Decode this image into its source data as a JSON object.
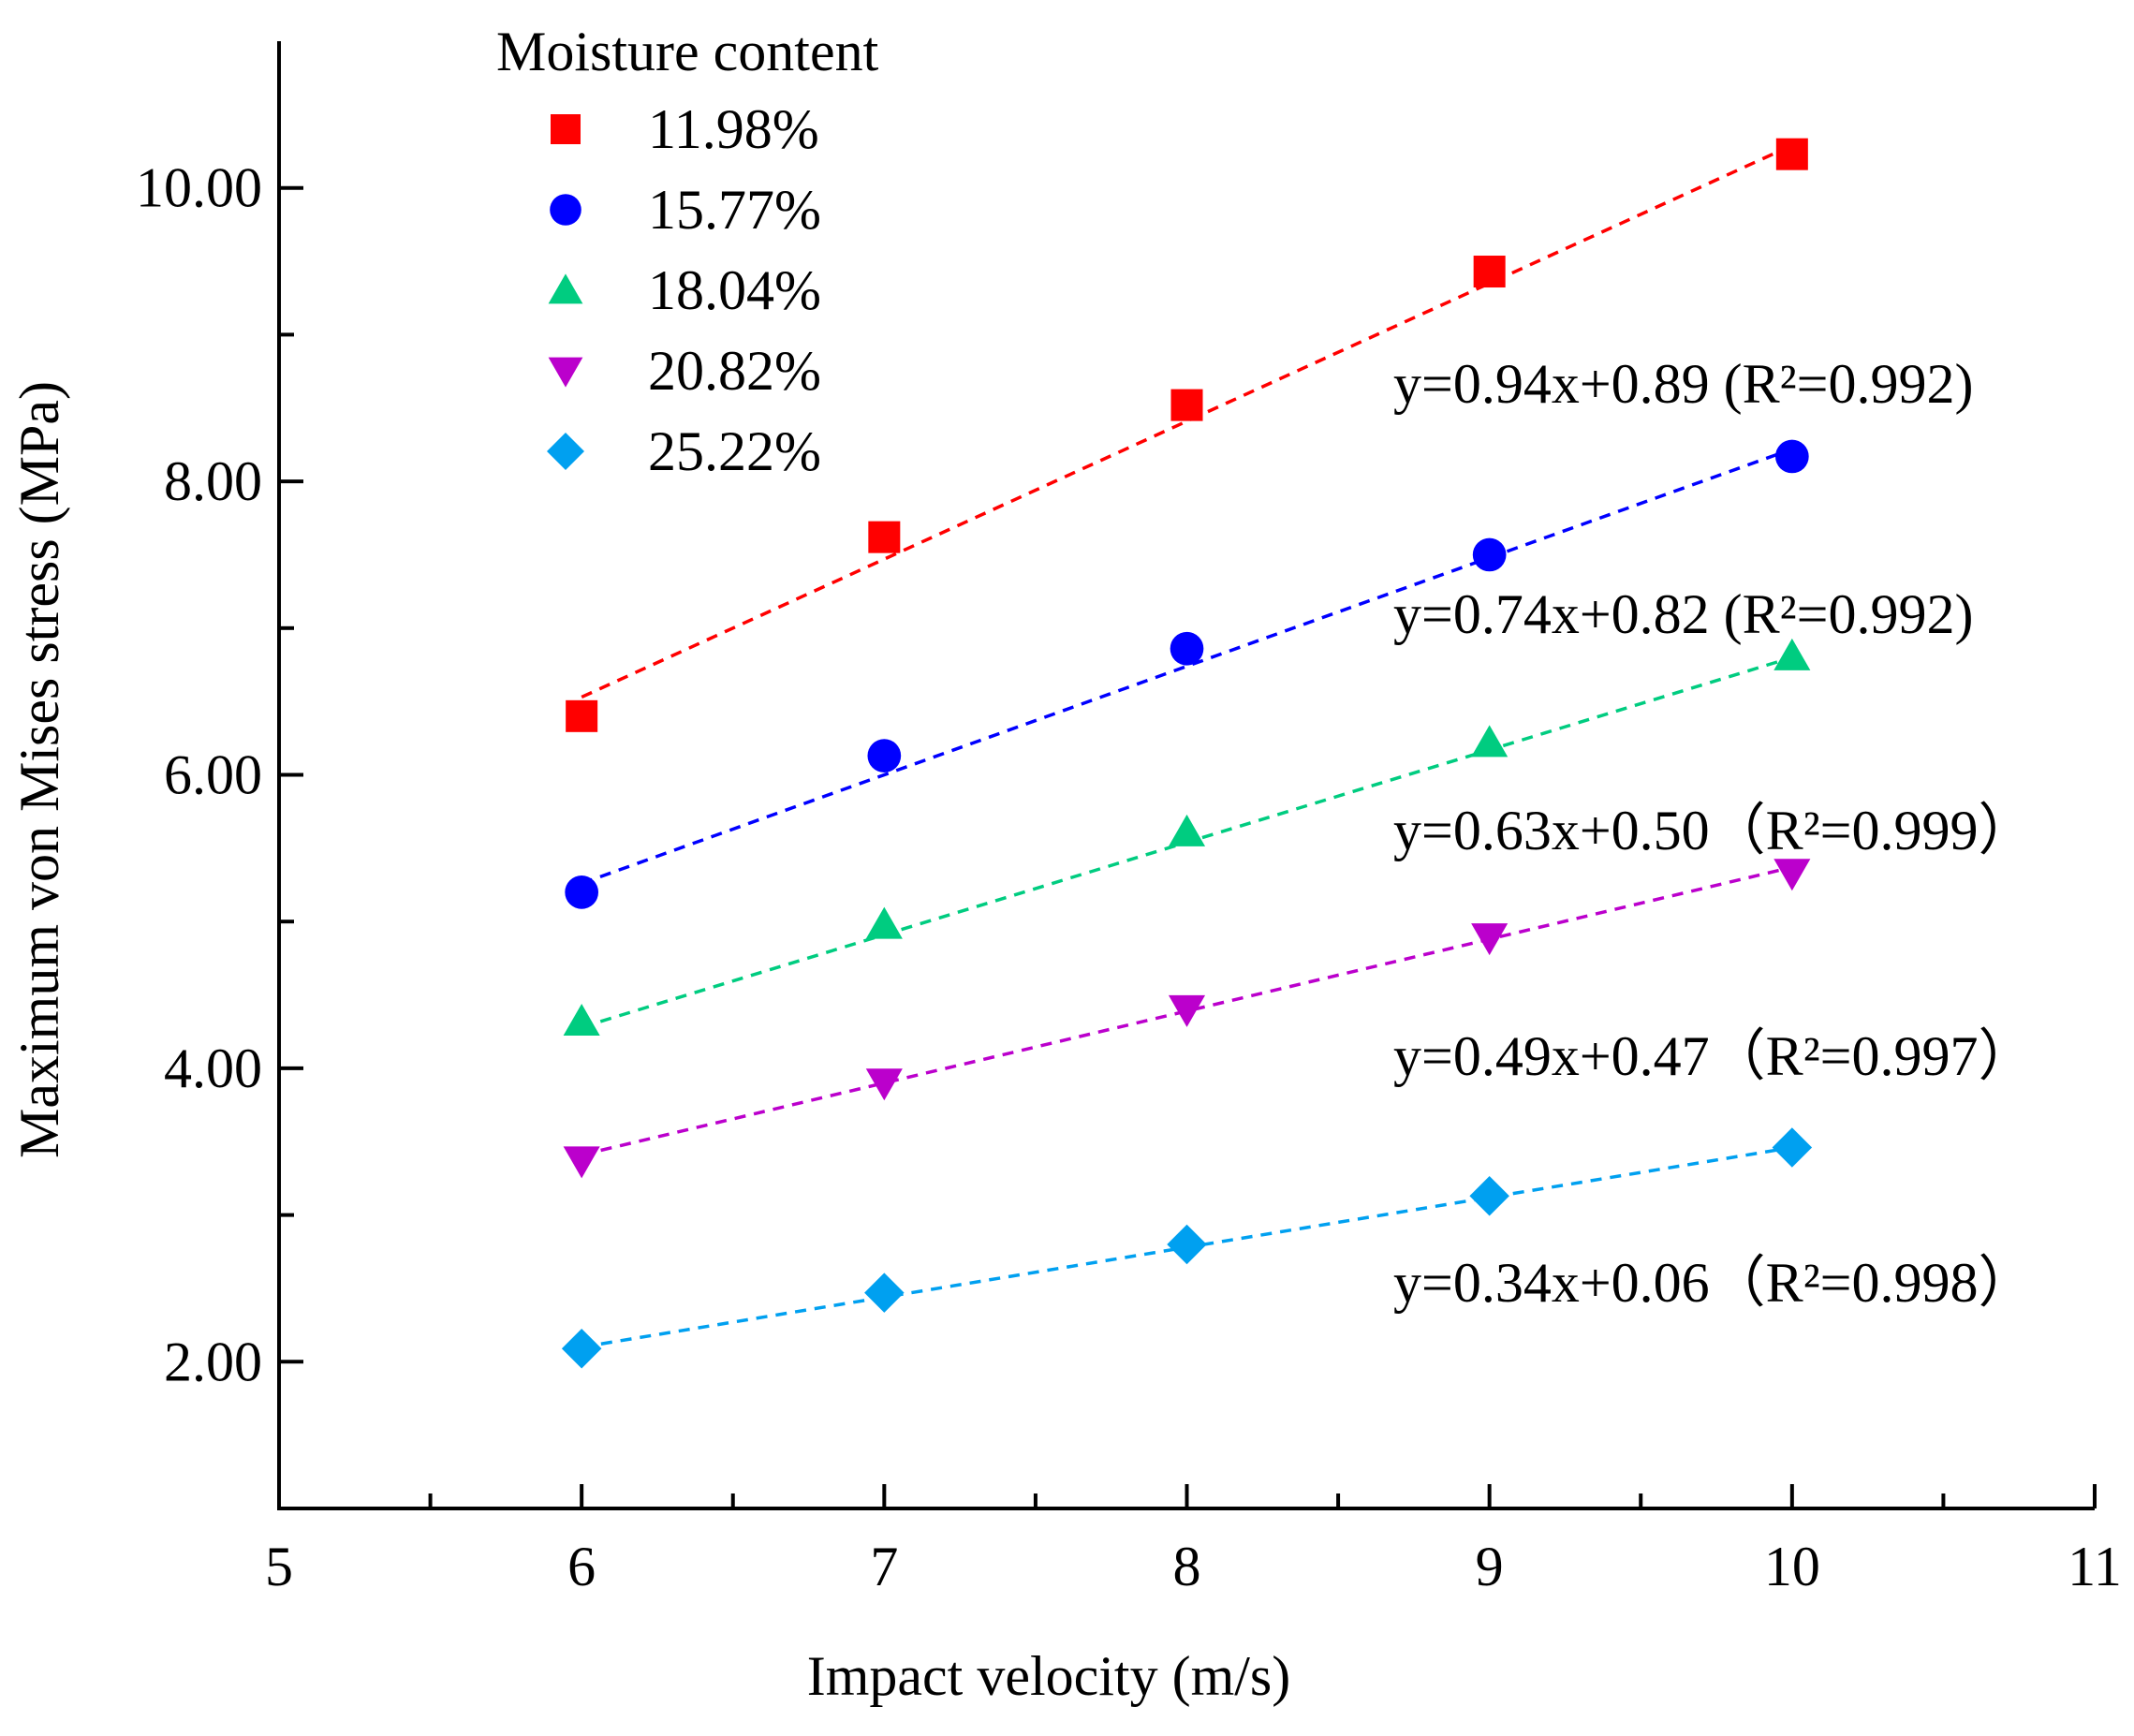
{
  "chart_data": {
    "type": "scatter",
    "title": "",
    "xlabel": "Impact velocity (m/s)",
    "ylabel": "Maximum von Mises stress (MPa)",
    "xlim": [
      5,
      11
    ],
    "ylim": [
      1.0,
      11.0
    ],
    "x_ticks": [
      "5",
      "6",
      "7",
      "8",
      "9",
      "10",
      "11"
    ],
    "y_ticks": [
      "2.00",
      "4.00",
      "6.00",
      "8.00",
      "10.00"
    ],
    "legend_title": "Moisture content",
    "legend_position": "top-left",
    "x": [
      6,
      7,
      8,
      9,
      10
    ],
    "series": [
      {
        "name": "11.98%",
        "marker": "square",
        "color": "#ff0000",
        "values": [
          6.4,
          7.62,
          8.52,
          9.43,
          10.23
        ],
        "fit": {
          "slope": 0.94,
          "intercept": 0.89,
          "equation": "y=0.94x+0.89 (R²=0.992)"
        }
      },
      {
        "name": "15.77%",
        "marker": "circle",
        "color": "#0000ff",
        "values": [
          5.2,
          6.13,
          6.86,
          7.5,
          8.17
        ],
        "fit": {
          "slope": 0.74,
          "intercept": 0.82,
          "equation": "y=0.74x+0.82 (R²=0.992)"
        }
      },
      {
        "name": "18.04%",
        "marker": "triangle-up",
        "color": "#00cc80",
        "values": [
          4.32,
          4.98,
          5.61,
          6.22,
          6.81
        ],
        "fit": {
          "slope": 0.63,
          "intercept": 0.5,
          "equation": "y=0.63x+0.50（R²=0.999）"
        }
      },
      {
        "name": "20.82%",
        "marker": "triangle-down",
        "color": "#bb00cc",
        "values": [
          3.37,
          3.9,
          4.4,
          4.89,
          5.33
        ],
        "fit": {
          "slope": 0.49,
          "intercept": 0.47,
          "equation": "y=0.49x+0.47（R²=0.997）"
        }
      },
      {
        "name": "25.22%",
        "marker": "diamond",
        "color": "#00a0f0",
        "values": [
          2.09,
          2.47,
          2.8,
          3.13,
          3.46
        ],
        "fit": {
          "slope": 0.34,
          "intercept": 0.06,
          "equation": "y=0.34x+0.06（R²=0.998）"
        }
      }
    ]
  }
}
